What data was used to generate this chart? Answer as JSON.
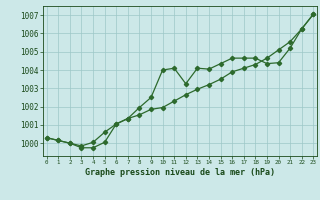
{
  "title": "Graphe pression niveau de la mer (hPa)",
  "xlabel_ticks": [
    0,
    1,
    2,
    3,
    4,
    5,
    6,
    7,
    8,
    9,
    10,
    11,
    12,
    13,
    14,
    15,
    16,
    17,
    18,
    19,
    20,
    21,
    22,
    23
  ],
  "ylim": [
    999.3,
    1007.5
  ],
  "xlim": [
    -0.3,
    23.3
  ],
  "yticks": [
    1000,
    1001,
    1002,
    1003,
    1004,
    1005,
    1006,
    1007
  ],
  "line1_x": [
    0,
    1,
    2,
    3,
    4,
    5,
    6,
    7,
    8,
    9,
    10,
    11,
    12,
    13,
    14,
    15,
    16,
    17,
    18,
    19,
    20,
    21,
    22,
    23
  ],
  "line1_y": [
    1000.3,
    1000.15,
    1000.0,
    999.85,
    1000.05,
    1000.6,
    1001.05,
    1001.35,
    1001.55,
    1001.85,
    1001.95,
    1002.3,
    1002.65,
    1002.95,
    1003.2,
    1003.5,
    1003.9,
    1004.1,
    1004.3,
    1004.65,
    1005.1,
    1005.55,
    1006.25,
    1007.05
  ],
  "line2_x": [
    0,
    1,
    2,
    3,
    4,
    5,
    6,
    7,
    8,
    9,
    10,
    11,
    12,
    13,
    14,
    15,
    16,
    17,
    18,
    19,
    20,
    21,
    22,
    23
  ],
  "line2_y": [
    1000.3,
    1000.15,
    1000.0,
    999.75,
    999.75,
    1000.05,
    1001.05,
    1001.35,
    1001.95,
    1002.5,
    1004.0,
    1004.1,
    1003.25,
    1004.1,
    1004.05,
    1004.35,
    1004.65,
    1004.65,
    1004.65,
    1004.35,
    1004.4,
    1005.2,
    1006.25,
    1007.05
  ],
  "line_color": "#2d6a2d",
  "bg_color": "#cce8e8",
  "grid_color": "#9dc8c8",
  "title_color": "#1a4a1a",
  "tick_color": "#1a4a1a",
  "marker": "D",
  "marker_size": 2.2,
  "linewidth": 0.9
}
